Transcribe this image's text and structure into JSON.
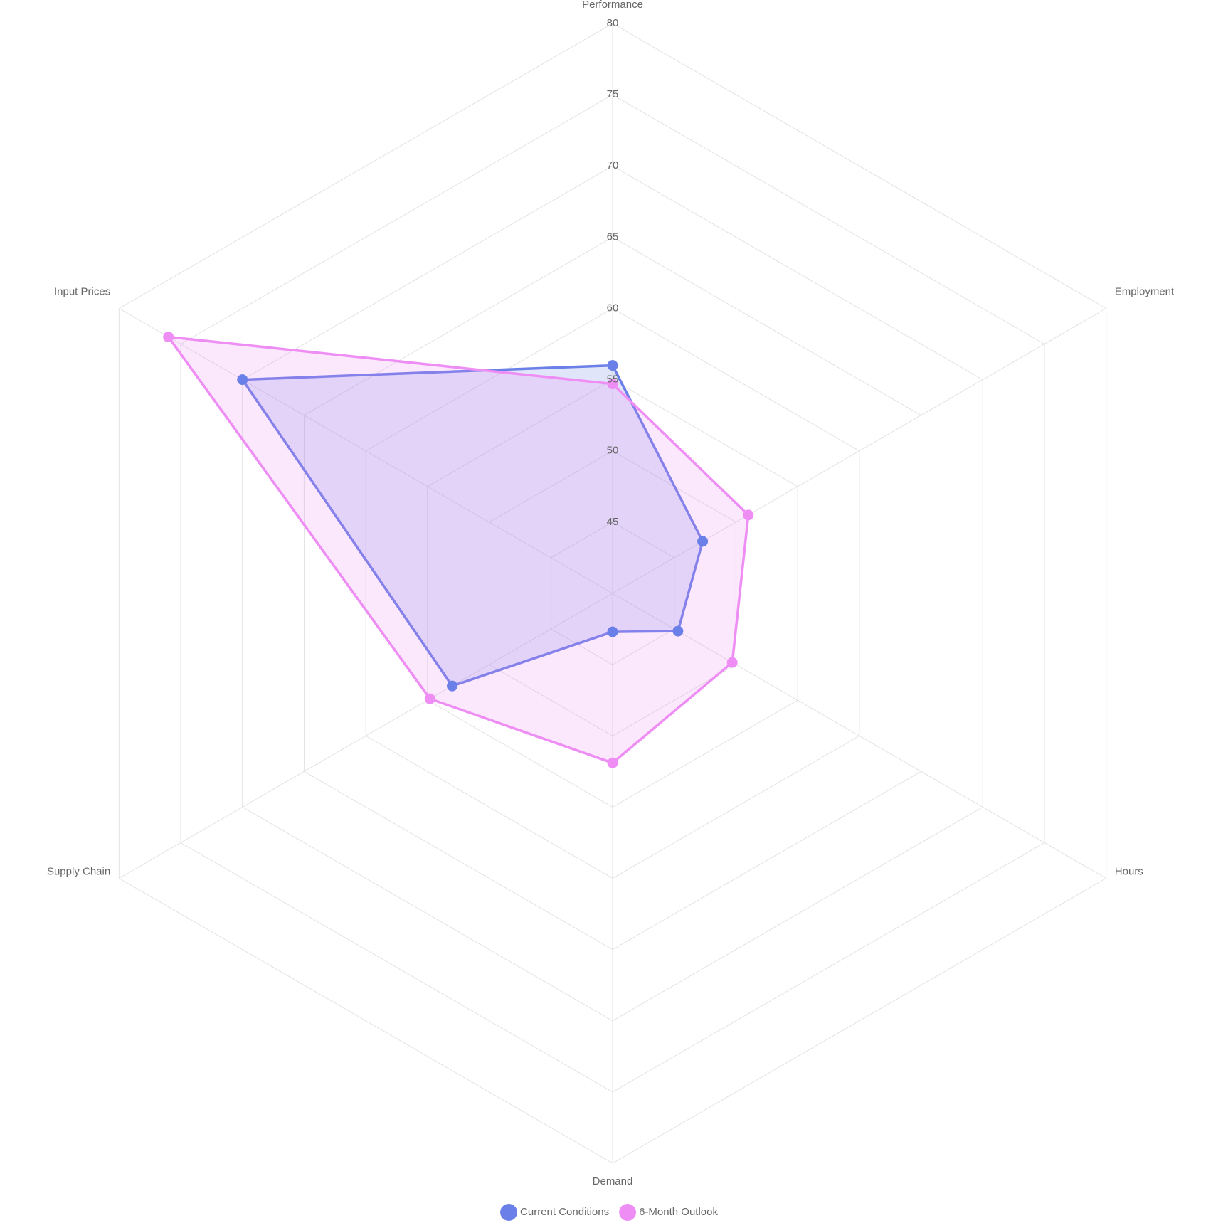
{
  "chart_data": {
    "type": "radar",
    "categories": [
      "Performance",
      "Employment",
      "Hours",
      "Demand",
      "Supply Chain",
      "Input Prices"
    ],
    "series": [
      {
        "name": "Current Conditions",
        "color": "#6b7fe8",
        "values": [
          56,
          47.3,
          45.3,
          42.7,
          53,
          70
        ]
      },
      {
        "name": "6-Month Outlook",
        "color": "#ee8ef5",
        "values": [
          54.7,
          51,
          49.7,
          51.9,
          54.8,
          76
        ]
      }
    ],
    "ylim": [
      40,
      80
    ],
    "yticks": [
      45,
      50,
      55,
      60,
      65,
      70,
      75,
      80
    ],
    "grid": true,
    "legend": "bottom"
  }
}
